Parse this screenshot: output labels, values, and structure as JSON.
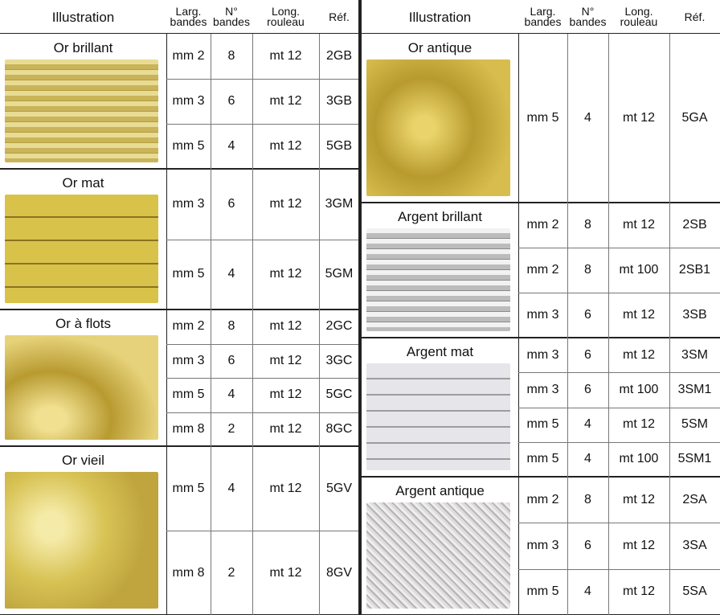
{
  "left": {
    "header": [
      "Illustration",
      "Larg.\nbandes",
      "N°\nbandes",
      "Long.\nrouleau",
      "Réf."
    ],
    "groups": [
      {
        "name": "Or brillant",
        "rows": [
          [
            "mm 2",
            "8",
            "mt 12",
            "2GB"
          ],
          [
            "mm 3",
            "6",
            "mt 12",
            "3GB"
          ],
          [
            "mm 5",
            "4",
            "mt 12",
            "5GB"
          ]
        ]
      },
      {
        "name": "Or mat",
        "rows": [
          [
            "mm 3",
            "6",
            "mt 12",
            "3GM"
          ],
          [
            "mm 5",
            "4",
            "mt 12",
            "5GM"
          ]
        ]
      },
      {
        "name": "Or à flots",
        "rows": [
          [
            "mm 2",
            "8",
            "mt 12",
            "2GC"
          ],
          [
            "mm 3",
            "6",
            "mt 12",
            "3GC"
          ],
          [
            "mm 5",
            "4",
            "mt 12",
            "5GC"
          ],
          [
            "mm 8",
            "2",
            "mt 12",
            "8GC"
          ]
        ]
      },
      {
        "name": "Or vieil",
        "rows": [
          [
            "mm 5",
            "4",
            "mt 12",
            "5GV"
          ],
          [
            "mm 8",
            "2",
            "mt 12",
            "8GV"
          ]
        ]
      }
    ]
  },
  "right": {
    "header": [
      "Illustration",
      "Larg.\nbandes",
      "N°\nbandes",
      "Long.\nrouleau",
      "Réf."
    ],
    "groups": [
      {
        "name": "Or antique",
        "rows": [
          [
            "mm 5",
            "4",
            "mt 12",
            "5GA"
          ]
        ]
      },
      {
        "name": "Argent brillant",
        "rows": [
          [
            "mm 2",
            "8",
            "mt 12",
            "2SB"
          ],
          [
            "mm 2",
            "8",
            "mt 100",
            "2SB1"
          ],
          [
            "mm 3",
            "6",
            "mt 12",
            "3SB"
          ]
        ]
      },
      {
        "name": "Argent mat",
        "rows": [
          [
            "mm 3",
            "6",
            "mt 12",
            "3SM"
          ],
          [
            "mm 3",
            "6",
            "mt 100",
            "3SM1"
          ],
          [
            "mm 5",
            "4",
            "mt 12",
            "5SM"
          ],
          [
            "mm 5",
            "4",
            "mt 100",
            "5SM1"
          ]
        ]
      },
      {
        "name": "Argent antique",
        "rows": [
          [
            "mm 2",
            "8",
            "mt 12",
            "2SA"
          ],
          [
            "mm 3",
            "6",
            "mt 12",
            "3SA"
          ],
          [
            "mm 5",
            "4",
            "mt 12",
            "5SA"
          ]
        ]
      }
    ]
  }
}
